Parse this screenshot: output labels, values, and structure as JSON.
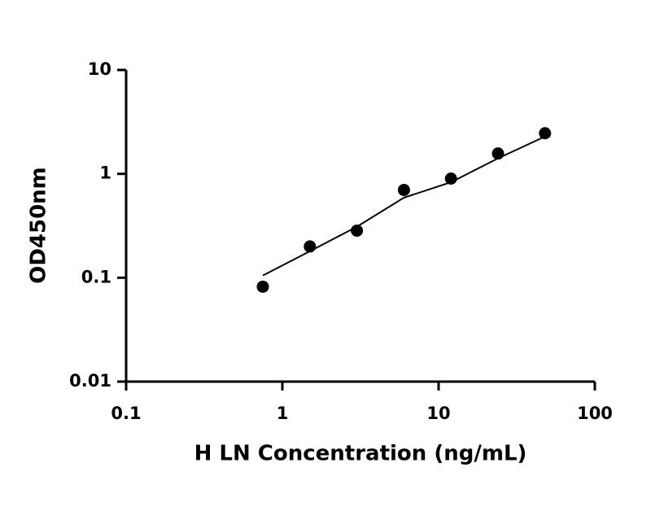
{
  "chart_data": {
    "type": "scatter",
    "x_label": "H LN Concentration (ng/mL)",
    "y_label": "OD450nm",
    "x": [
      0.75,
      1.5,
      3,
      6,
      12,
      24,
      48
    ],
    "values": [
      0.082,
      0.2,
      0.284,
      0.7,
      0.9,
      1.57,
      2.46
    ],
    "color": "#000000",
    "fit": {
      "x": [
        0.75,
        1.5,
        3,
        6,
        12,
        24,
        48
      ],
      "values": [
        0.105,
        0.18,
        0.31,
        0.59,
        0.83,
        1.41,
        2.29
      ],
      "color": "#000000"
    },
    "xscale": "log",
    "yscale": "log",
    "xlim": [
      0.1,
      100
    ],
    "ylim": [
      0.01,
      10
    ],
    "xticks": [
      0.1,
      1,
      10,
      100
    ],
    "yticks": [
      0.01,
      0.1,
      1,
      10
    ]
  }
}
